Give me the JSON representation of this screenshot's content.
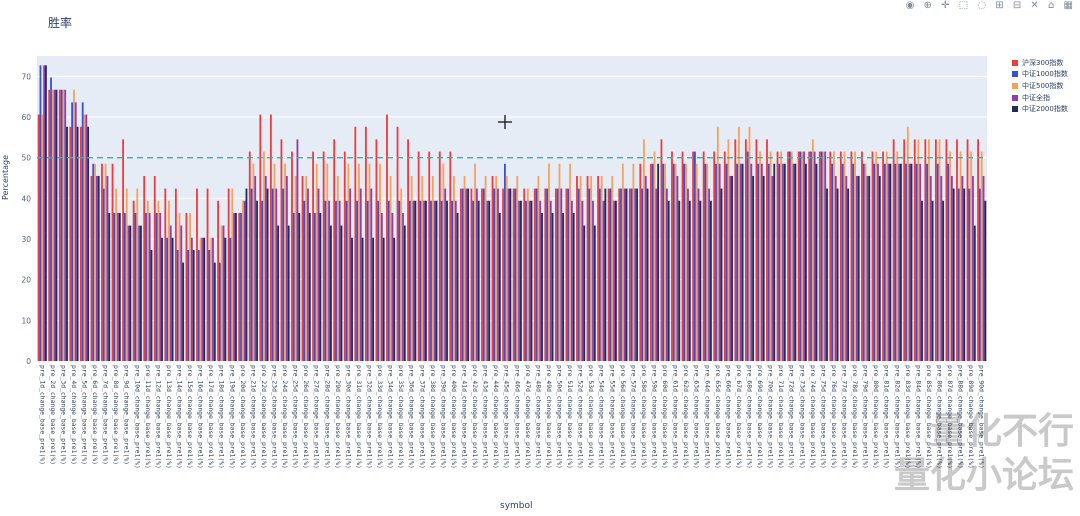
{
  "toolbar": {
    "icons": [
      "camera-icon",
      "zoom-icon",
      "pan-icon",
      "box-select-icon",
      "lasso-icon",
      "zoom-in-icon",
      "zoom-out-icon",
      "autoscale-icon",
      "reset-axes-icon",
      "plotly-logo-icon"
    ]
  },
  "watermark": {
    "line1": "量化不行",
    "line2": "量化小论坛"
  },
  "chart_data": {
    "type": "bar",
    "title": "胜率",
    "xlabel": "symbol",
    "ylabel": "Percentage",
    "ylim": [
      0,
      75
    ],
    "yticks": [
      0,
      10,
      20,
      30,
      40,
      50,
      60,
      70
    ],
    "grid": true,
    "legend_position": "top-right",
    "reference_line": {
      "y": 50,
      "color": "#2bb5b5",
      "style": "dashed"
    },
    "categories": [
      "pre_1d_change_base_pre1(%)",
      "pre_2d_change_base_pre1(%)",
      "pre_3d_change_base_pre1(%)",
      "pre_4d_change_base_pre1(%)",
      "pre_5d_change_base_pre1(%)",
      "pre_6d_change_base_pre1(%)",
      "pre_7d_change_base_pre1(%)",
      "pre_8d_change_base_pre1(%)",
      "pre_9d_change_base_pre1(%)",
      "pre_10d_change_base_pre1(%)",
      "pre_11d_change_base_pre1(%)",
      "pre_12d_change_base_pre1(%)",
      "pre_13d_change_base_pre1(%)",
      "pre_14d_change_base_pre1(%)",
      "pre_15d_change_base_pre1(%)",
      "pre_16d_change_base_pre1(%)",
      "pre_17d_change_base_pre1(%)",
      "pre_18d_change_base_pre1(%)",
      "pre_19d_change_base_pre1(%)",
      "pre_20d_change_base_pre1(%)",
      "pre_21d_change_base_pre1(%)",
      "pre_22d_change_base_pre1(%)",
      "pre_23d_change_base_pre1(%)",
      "pre_24d_change_base_pre1(%)",
      "pre_25d_change_base_pre1(%)",
      "pre_26d_change_base_pre1(%)",
      "pre_27d_change_base_pre1(%)",
      "pre_28d_change_base_pre1(%)",
      "pre_29d_change_base_pre1(%)",
      "pre_30d_change_base_pre1(%)",
      "pre_31d_change_base_pre1(%)",
      "pre_32d_change_base_pre1(%)",
      "pre_33d_change_base_pre1(%)",
      "pre_34d_change_base_pre1(%)",
      "pre_35d_change_base_pre1(%)",
      "pre_36d_change_base_pre1(%)",
      "pre_37d_change_base_pre1(%)",
      "pre_38d_change_base_pre1(%)",
      "pre_39d_change_base_pre1(%)",
      "pre_40d_change_base_pre1(%)",
      "pre_41d_change_base_pre1(%)",
      "pre_42d_change_base_pre1(%)",
      "pre_43d_change_base_pre1(%)",
      "pre_44d_change_base_pre1(%)",
      "pre_45d_change_base_pre1(%)",
      "pre_46d_change_base_pre1(%)",
      "pre_47d_change_base_pre1(%)",
      "pre_48d_change_base_pre1(%)",
      "pre_49d_change_base_pre1(%)",
      "pre_50d_change_base_pre1(%)",
      "pre_51d_change_base_pre1(%)",
      "pre_52d_change_base_pre1(%)",
      "pre_53d_change_base_pre1(%)",
      "pre_54d_change_base_pre1(%)",
      "pre_55d_change_base_pre1(%)",
      "pre_56d_change_base_pre1(%)",
      "pre_57d_change_base_pre1(%)",
      "pre_58d_change_base_pre1(%)",
      "pre_59d_change_base_pre1(%)",
      "pre_60d_change_base_pre1(%)",
      "pre_61d_change_base_pre1(%)",
      "pre_62d_change_base_pre1(%)",
      "pre_63d_change_base_pre1(%)",
      "pre_64d_change_base_pre1(%)",
      "pre_65d_change_base_pre1(%)",
      "pre_66d_change_base_pre1(%)",
      "pre_67d_change_base_pre1(%)",
      "pre_68d_change_base_pre1(%)",
      "pre_69d_change_base_pre1(%)",
      "pre_70d_change_base_pre1(%)",
      "pre_71d_change_base_pre1(%)",
      "pre_72d_change_base_pre1(%)",
      "pre_73d_change_base_pre1(%)",
      "pre_74d_change_base_pre1(%)",
      "pre_75d_change_base_pre1(%)",
      "pre_76d_change_base_pre1(%)",
      "pre_77d_change_base_pre1(%)",
      "pre_78d_change_base_pre1(%)",
      "pre_79d_change_base_pre1(%)",
      "pre_80d_change_base_pre1(%)",
      "pre_81d_change_base_pre1(%)",
      "pre_82d_change_base_pre1(%)",
      "pre_83d_change_base_pre1(%)",
      "pre_84d_change_base_pre1(%)",
      "pre_85d_change_base_pre1(%)",
      "pre_86d_change_base_pre1(%)",
      "pre_87d_change_base_pre1(%)",
      "pre_88d_change_base_pre1(%)",
      "pre_89d_change_base_pre1(%)",
      "pre_90d_change_base_pre1(%)"
    ],
    "series": [
      {
        "name": "沪深300指数",
        "color": "#ef3b3b",
        "values": [
          60.6,
          66.7,
          66.7,
          57.6,
          57.6,
          45.5,
          48.5,
          48.5,
          54.5,
          39.4,
          45.5,
          45.5,
          42.4,
          42.4,
          36.4,
          42.4,
          42.4,
          39.4,
          42.4,
          36.4,
          51.5,
          60.6,
          60.6,
          54.5,
          51.5,
          45.5,
          51.5,
          51.5,
          54.5,
          51.5,
          57.6,
          57.6,
          54.5,
          60.6,
          57.6,
          54.5,
          51.5,
          51.5,
          51.5,
          51.5,
          42.4,
          42.4,
          42.4,
          45.5,
          42.4,
          42.4,
          42.4,
          42.4,
          42.4,
          42.4,
          42.4,
          45.5,
          45.5,
          45.5,
          42.4,
          42.4,
          42.4,
          48.5,
          48.5,
          54.5,
          51.5,
          51.5,
          51.5,
          51.5,
          51.5,
          51.5,
          54.5,
          54.5,
          54.5,
          54.5,
          51.5,
          51.5,
          51.5,
          51.5,
          51.5,
          51.5,
          51.5,
          51.5,
          51.5,
          51.5,
          51.5,
          54.5,
          54.5,
          54.5,
          54.5,
          54.5,
          54.5,
          54.5,
          54.5,
          54.5
        ]
      },
      {
        "name": "中证1000指数",
        "color": "#3b4fd1",
        "values": [
          72.7,
          69.7,
          66.7,
          63.6,
          63.6,
          48.5,
          42.4,
          36.4,
          36.4,
          36.4,
          36.4,
          36.4,
          30.3,
          27.3,
          27.3,
          27.3,
          27.3,
          24.2,
          30.3,
          36.4,
          42.4,
          39.4,
          42.4,
          42.4,
          36.4,
          39.4,
          36.4,
          39.4,
          39.4,
          39.4,
          39.4,
          39.4,
          39.4,
          39.4,
          39.4,
          39.4,
          39.4,
          39.4,
          39.4,
          39.4,
          42.4,
          39.4,
          42.4,
          42.4,
          48.5,
          42.4,
          39.4,
          42.4,
          42.4,
          42.4,
          42.4,
          42.4,
          42.4,
          42.4,
          42.4,
          42.4,
          42.4,
          42.4,
          48.5,
          48.5,
          48.5,
          48.5,
          51.5,
          48.5,
          48.5,
          48.5,
          48.5,
          51.5,
          48.5,
          48.5,
          48.5,
          51.5,
          51.5,
          51.5,
          51.5,
          48.5,
          48.5,
          48.5,
          48.5,
          48.5,
          48.5,
          48.5,
          48.5,
          48.5,
          48.5,
          48.5,
          48.5,
          42.4,
          42.4,
          42.4
        ]
      },
      {
        "name": "中证500指数",
        "color": "#f4a35c",
        "values": [
          60.6,
          66.7,
          66.7,
          66.7,
          60.6,
          48.5,
          48.5,
          42.4,
          42.4,
          42.4,
          39.4,
          39.4,
          39.4,
          36.4,
          36.4,
          30.3,
          30.3,
          33.3,
          42.4,
          39.4,
          48.5,
          51.5,
          48.5,
          48.5,
          45.5,
          45.5,
          48.5,
          48.5,
          45.5,
          48.5,
          48.5,
          48.5,
          48.5,
          45.5,
          42.4,
          45.5,
          45.5,
          45.5,
          48.5,
          45.5,
          45.5,
          48.5,
          45.5,
          45.5,
          45.5,
          45.5,
          42.4,
          45.5,
          48.5,
          48.5,
          48.5,
          45.5,
          45.5,
          45.5,
          45.5,
          48.5,
          48.5,
          54.5,
          51.5,
          48.5,
          48.5,
          48.5,
          48.5,
          48.5,
          57.6,
          54.5,
          57.6,
          57.6,
          51.5,
          51.5,
          51.5,
          51.5,
          51.5,
          54.5,
          51.5,
          51.5,
          51.5,
          51.5,
          48.5,
          51.5,
          51.5,
          51.5,
          57.6,
          54.5,
          54.5,
          54.5,
          51.5,
          51.5,
          51.5,
          51.5
        ]
      },
      {
        "name": "中证全指",
        "color": "#8a3fb5",
        "values": [
          72.7,
          66.7,
          66.7,
          63.6,
          60.6,
          45.5,
          45.5,
          36.4,
          33.3,
          33.3,
          36.4,
          36.4,
          33.3,
          33.3,
          30.3,
          30.3,
          30.3,
          33.3,
          36.4,
          39.4,
          45.5,
          45.5,
          42.4,
          45.5,
          54.5,
          42.4,
          42.4,
          39.4,
          39.4,
          42.4,
          42.4,
          42.4,
          36.4,
          36.4,
          36.4,
          39.4,
          39.4,
          39.4,
          42.4,
          39.4,
          42.4,
          42.4,
          39.4,
          42.4,
          42.4,
          39.4,
          39.4,
          39.4,
          39.4,
          42.4,
          39.4,
          39.4,
          39.4,
          39.4,
          39.4,
          42.4,
          42.4,
          45.5,
          42.4,
          42.4,
          45.5,
          42.4,
          42.4,
          42.4,
          48.5,
          45.5,
          48.5,
          48.5,
          48.5,
          45.5,
          48.5,
          48.5,
          51.5,
          51.5,
          51.5,
          45.5,
          45.5,
          45.5,
          45.5,
          48.5,
          48.5,
          48.5,
          48.5,
          48.5,
          45.5,
          45.5,
          45.5,
          45.5,
          45.5,
          45.5
        ]
      },
      {
        "name": "中证2000指数",
        "color": "#1f2d57",
        "values": [
          72.7,
          66.7,
          57.6,
          57.6,
          57.6,
          45.5,
          36.4,
          36.4,
          33.3,
          33.3,
          27.3,
          30.3,
          30.3,
          24.2,
          27.3,
          30.3,
          24.2,
          30.3,
          36.4,
          42.4,
          39.4,
          42.4,
          33.3,
          33.3,
          36.4,
          36.4,
          36.4,
          33.3,
          33.3,
          30.3,
          30.3,
          30.3,
          30.3,
          30.3,
          33.3,
          39.4,
          39.4,
          39.4,
          39.4,
          36.4,
          42.4,
          39.4,
          39.4,
          36.4,
          42.4,
          39.4,
          39.4,
          36.4,
          36.4,
          36.4,
          36.4,
          33.3,
          33.3,
          42.4,
          39.4,
          42.4,
          42.4,
          42.4,
          48.5,
          39.4,
          39.4,
          39.4,
          39.4,
          39.4,
          42.4,
          45.5,
          48.5,
          45.5,
          45.5,
          48.5,
          48.5,
          48.5,
          48.5,
          48.5,
          42.4,
          42.4,
          42.4,
          45.5,
          45.5,
          45.5,
          48.5,
          48.5,
          48.5,
          39.4,
          39.4,
          39.4,
          42.4,
          42.4,
          33.3,
          39.4
        ]
      }
    ]
  }
}
